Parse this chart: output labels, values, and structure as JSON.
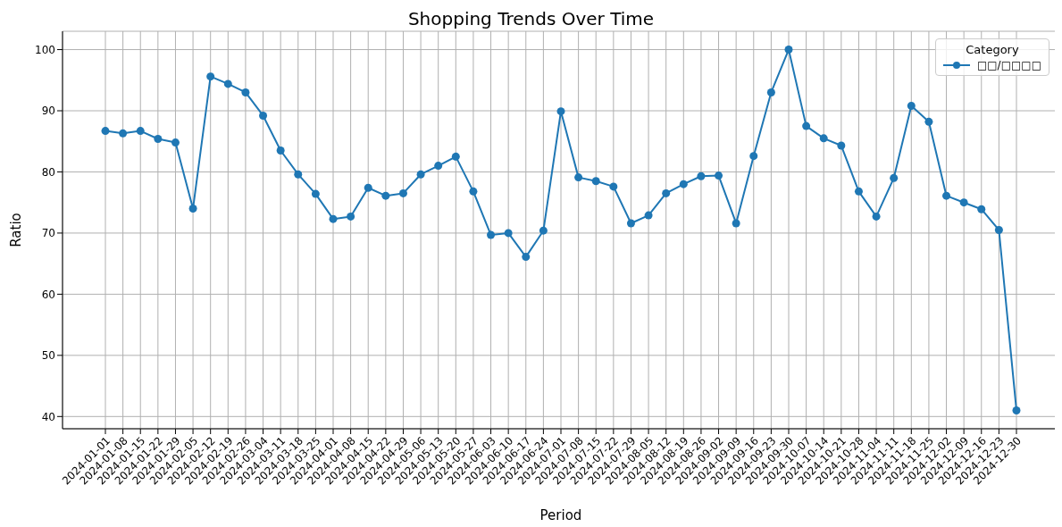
{
  "chart_data": {
    "type": "line",
    "title": "Shopping Trends Over Time",
    "xlabel": "Period",
    "ylabel": "Ratio",
    "legend_title": "Category",
    "categories": [
      "2024-01-01",
      "2024-01-08",
      "2024-01-15",
      "2024-01-22",
      "2024-01-29",
      "2024-02-05",
      "2024-02-12",
      "2024-02-19",
      "2024-02-26",
      "2024-03-04",
      "2024-03-11",
      "2024-03-18",
      "2024-03-25",
      "2024-04-01",
      "2024-04-08",
      "2024-04-15",
      "2024-04-22",
      "2024-04-29",
      "2024-05-06",
      "2024-05-13",
      "2024-05-20",
      "2024-05-27",
      "2024-06-03",
      "2024-06-10",
      "2024-06-17",
      "2024-06-24",
      "2024-07-01",
      "2024-07-08",
      "2024-07-15",
      "2024-07-22",
      "2024-07-29",
      "2024-08-05",
      "2024-08-12",
      "2024-08-19",
      "2024-08-26",
      "2024-09-02",
      "2024-09-09",
      "2024-09-16",
      "2024-09-23",
      "2024-09-30",
      "2024-10-07",
      "2024-10-14",
      "2024-10-21",
      "2024-10-28",
      "2024-11-04",
      "2024-11-11",
      "2024-11-18",
      "2024-11-25",
      "2024-12-02",
      "2024-12-09",
      "2024-12-16",
      "2024-12-23",
      "2024-12-30"
    ],
    "series": [
      {
        "name": "□□/□□□□",
        "color": "#1f77b4",
        "values": [
          86.7,
          86.3,
          86.7,
          85.4,
          84.8,
          74.0,
          95.6,
          94.4,
          93.0,
          89.2,
          83.5,
          79.6,
          76.4,
          72.3,
          72.7,
          77.4,
          76.1,
          76.5,
          79.6,
          81.0,
          82.5,
          76.8,
          69.7,
          70.0,
          66.1,
          70.4,
          89.9,
          79.1,
          78.5,
          77.6,
          71.6,
          72.9,
          76.5,
          78.0,
          79.3,
          79.4,
          71.6,
          82.6,
          93.0,
          100.0,
          87.5,
          85.5,
          84.3,
          76.8,
          72.7,
          79.0,
          90.8,
          88.2,
          76.1,
          75.0,
          73.9,
          70.5,
          41.0
        ]
      }
    ],
    "ylim": [
      38,
      103
    ],
    "yticks": [
      40,
      50,
      60,
      70,
      80,
      90,
      100
    ],
    "grid": true,
    "legend": "top right",
    "marker": "circle",
    "line_style": "solid"
  }
}
